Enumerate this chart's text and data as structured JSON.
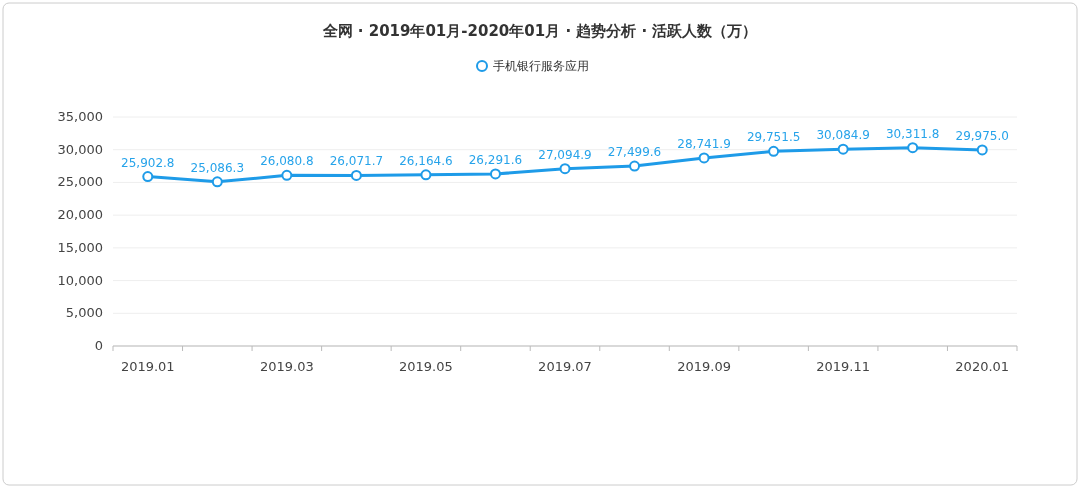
{
  "chart_data": {
    "type": "line",
    "title": "全网 · 2019年01月-2020年01月 · 趋势分析 · 活跃人数（万）",
    "categories": [
      "2019.01",
      null,
      "2019.03",
      null,
      "2019.05",
      null,
      "2019.07",
      null,
      "2019.09",
      null,
      "2019.11",
      null,
      "2020.01"
    ],
    "series": [
      {
        "name": "手机银行服务应用",
        "color": "#1e9be8",
        "values": [
          25902.8,
          25086.3,
          26080.8,
          26071.7,
          26164.6,
          26291.6,
          27094.9,
          27499.6,
          28741.9,
          29751.5,
          30084.9,
          30311.8,
          29975.0
        ],
        "value_labels": [
          "25,902.8",
          "25,086.3",
          "26,080.8",
          "26,071.7",
          "26,164.6",
          "26,291.6",
          "27,094.9",
          "27,499.6",
          "28,741.9",
          "29,751.5",
          "30,084.9",
          "30,311.8",
          "29,975.0"
        ]
      }
    ],
    "ylim": [
      0,
      35000
    ],
    "yticks": [
      0,
      {
        "value": 5000,
        "label": "5,000"
      },
      {
        "value": 10000,
        "label": "10,000"
      },
      {
        "value": 15000,
        "label": "15,000"
      },
      {
        "value": 20000,
        "label": "20,000"
      },
      {
        "value": 25000,
        "label": "25,000"
      },
      {
        "value": 30000,
        "label": "30,000"
      },
      {
        "value": 35000,
        "label": "35,000"
      }
    ],
    "grid": "y",
    "legend": "top",
    "marker": "circle",
    "line_style": "solid"
  }
}
